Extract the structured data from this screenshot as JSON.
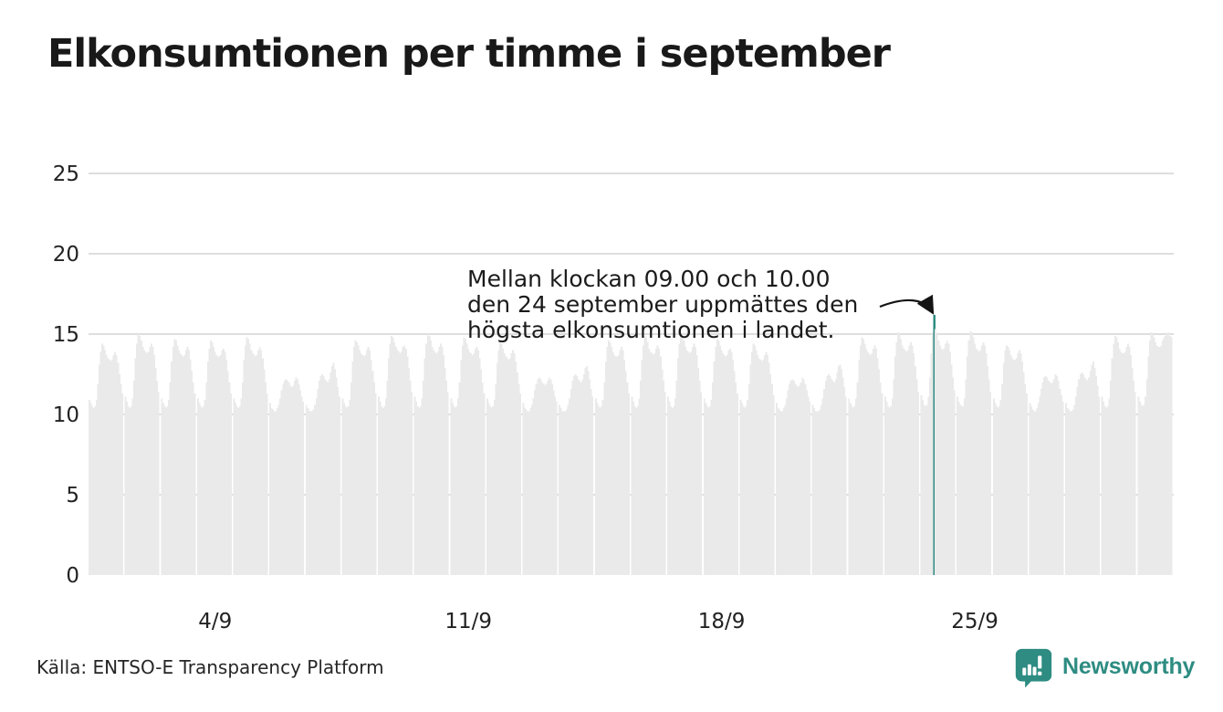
{
  "header": {
    "title": "Elkonsumtionen per timme i september"
  },
  "chart_data": {
    "type": "bar",
    "title": "Elkonsumtionen per timme i september",
    "xlabel": "",
    "ylabel": "",
    "ylim": [
      0,
      25
    ],
    "yticks": [
      0,
      5,
      10,
      15,
      20,
      25
    ],
    "xticks": [
      {
        "label": "4/9",
        "day": 4
      },
      {
        "label": "11/9",
        "day": 11
      },
      {
        "label": "18/9",
        "day": 18
      },
      {
        "label": "25/9",
        "day": 25
      }
    ],
    "grid": "horizontal",
    "legend": "none",
    "bar_color": "#eaeaea",
    "grid_color": "#dedede",
    "highlight": {
      "day": 24,
      "hour": 9,
      "value": 16.2,
      "color": "#2e8c82"
    },
    "annotation": {
      "line1": "Mellan klockan 09.00 och 10.00",
      "line2": "den 24 september uppmättes den",
      "line3": "högsta elkonsumtionen i landet."
    },
    "days": [
      [
        10.9,
        10.7,
        10.5,
        10.4,
        10.5,
        10.9,
        11.9,
        13.1,
        13.9,
        14.4,
        14.3,
        14.0,
        13.7,
        13.5,
        13.4,
        13.3,
        13.4,
        13.7,
        13.9,
        13.7,
        13.2,
        12.5,
        11.9,
        11.3
      ],
      [
        11.1,
        10.8,
        10.5,
        10.4,
        10.5,
        11.0,
        12.1,
        13.5,
        14.4,
        15.0,
        14.9,
        14.6,
        14.2,
        14.0,
        13.9,
        13.8,
        13.9,
        14.2,
        14.4,
        14.2,
        13.7,
        12.9,
        12.1,
        11.4
      ],
      [
        11.0,
        10.7,
        10.5,
        10.4,
        10.5,
        10.9,
        12.0,
        13.3,
        14.2,
        14.7,
        14.6,
        14.3,
        14.0,
        13.8,
        13.7,
        13.6,
        13.7,
        14.0,
        14.2,
        14.0,
        13.4,
        12.7,
        12.0,
        11.3
      ],
      [
        11.0,
        10.7,
        10.5,
        10.4,
        10.5,
        10.9,
        12.0,
        13.3,
        14.1,
        14.6,
        14.5,
        14.2,
        13.9,
        13.7,
        13.6,
        13.6,
        13.7,
        14.0,
        14.1,
        13.9,
        13.4,
        12.7,
        12.0,
        11.3
      ],
      [
        11.0,
        10.7,
        10.5,
        10.4,
        10.5,
        11.0,
        12.0,
        13.4,
        14.3,
        14.8,
        14.7,
        14.4,
        14.0,
        13.8,
        13.7,
        13.6,
        13.7,
        14.0,
        14.2,
        14.0,
        13.5,
        12.8,
        12.0,
        11.3
      ],
      [
        10.7,
        10.4,
        10.3,
        10.2,
        10.2,
        10.4,
        10.6,
        11.0,
        11.5,
        11.9,
        12.1,
        12.2,
        12.1,
        12.0,
        11.8,
        11.7,
        11.8,
        12.1,
        12.3,
        12.2,
        11.9,
        11.5,
        11.1,
        10.8
      ],
      [
        10.6,
        10.4,
        10.2,
        10.2,
        10.2,
        10.3,
        10.6,
        11.0,
        11.6,
        12.1,
        12.4,
        12.5,
        12.4,
        12.2,
        12.1,
        12.0,
        12.2,
        12.6,
        13.0,
        13.2,
        12.8,
        12.3,
        11.7,
        11.1
      ],
      [
        11.0,
        10.7,
        10.5,
        10.4,
        10.5,
        10.9,
        12.0,
        13.3,
        14.2,
        14.6,
        14.5,
        14.3,
        14.0,
        13.8,
        13.7,
        13.6,
        13.7,
        14.0,
        14.2,
        14.0,
        13.4,
        12.7,
        12.0,
        11.3
      ],
      [
        11.1,
        10.8,
        10.5,
        10.4,
        10.5,
        11.0,
        12.1,
        13.5,
        14.4,
        14.9,
        14.8,
        14.5,
        14.2,
        14.0,
        13.9,
        13.8,
        13.9,
        14.2,
        14.3,
        14.1,
        13.6,
        12.9,
        12.1,
        11.4
      ],
      [
        11.1,
        10.8,
        10.5,
        10.4,
        10.5,
        11.0,
        12.1,
        13.5,
        14.4,
        15.0,
        14.9,
        14.6,
        14.2,
        14.0,
        13.9,
        13.8,
        13.9,
        14.2,
        14.4,
        14.2,
        13.7,
        12.9,
        12.1,
        11.4
      ],
      [
        11.0,
        10.7,
        10.5,
        10.4,
        10.5,
        11.0,
        12.0,
        13.4,
        14.3,
        14.8,
        14.7,
        14.4,
        14.1,
        13.9,
        13.8,
        13.7,
        13.8,
        14.1,
        14.2,
        14.0,
        13.5,
        12.8,
        12.0,
        11.3
      ],
      [
        11.0,
        10.7,
        10.5,
        10.4,
        10.5,
        10.9,
        11.9,
        13.2,
        14.0,
        14.5,
        14.4,
        14.1,
        13.8,
        13.6,
        13.5,
        13.4,
        13.5,
        13.8,
        14.0,
        13.8,
        13.3,
        12.6,
        11.9,
        11.3
      ],
      [
        10.7,
        10.4,
        10.3,
        10.2,
        10.2,
        10.4,
        10.6,
        11.0,
        11.5,
        11.9,
        12.2,
        12.3,
        12.2,
        12.0,
        11.9,
        11.8,
        11.9,
        12.1,
        12.3,
        12.2,
        11.9,
        11.5,
        11.1,
        10.8
      ],
      [
        10.6,
        10.4,
        10.2,
        10.2,
        10.2,
        10.3,
        10.6,
        11.0,
        11.6,
        12.1,
        12.4,
        12.5,
        12.4,
        12.2,
        12.1,
        12.0,
        12.2,
        12.5,
        12.9,
        13.0,
        12.7,
        12.2,
        11.6,
        11.1
      ],
      [
        11.0,
        10.7,
        10.5,
        10.4,
        10.5,
        10.9,
        12.0,
        13.3,
        14.2,
        14.6,
        14.5,
        14.2,
        13.9,
        13.7,
        13.6,
        13.6,
        13.7,
        14.0,
        14.2,
        14.0,
        13.4,
        12.7,
        12.0,
        11.3
      ],
      [
        11.1,
        10.8,
        10.5,
        10.4,
        10.5,
        11.0,
        12.1,
        13.4,
        14.3,
        14.9,
        14.8,
        14.5,
        14.1,
        13.9,
        13.8,
        13.7,
        13.8,
        14.1,
        14.3,
        14.1,
        13.6,
        12.8,
        12.1,
        11.4
      ],
      [
        11.1,
        10.8,
        10.5,
        10.4,
        10.5,
        11.0,
        12.1,
        13.5,
        14.4,
        15.0,
        14.9,
        14.6,
        14.2,
        14.0,
        13.9,
        13.8,
        13.9,
        14.2,
        14.4,
        14.2,
        13.7,
        12.9,
        12.1,
        11.4
      ],
      [
        11.0,
        10.7,
        10.5,
        10.4,
        10.5,
        10.9,
        12.0,
        13.3,
        14.2,
        14.7,
        14.6,
        14.3,
        14.0,
        13.8,
        13.7,
        13.6,
        13.7,
        14.0,
        14.1,
        13.9,
        13.4,
        12.7,
        12.0,
        11.3
      ],
      [
        10.9,
        10.7,
        10.5,
        10.4,
        10.5,
        10.9,
        11.9,
        13.1,
        13.9,
        14.4,
        14.3,
        14.0,
        13.7,
        13.5,
        13.4,
        13.3,
        13.4,
        13.7,
        13.9,
        13.7,
        13.2,
        12.5,
        11.9,
        11.2
      ],
      [
        10.7,
        10.4,
        10.3,
        10.2,
        10.2,
        10.4,
        10.6,
        11.0,
        11.5,
        11.9,
        12.1,
        12.2,
        12.1,
        11.9,
        11.8,
        11.7,
        11.8,
        12.0,
        12.3,
        12.2,
        11.9,
        11.5,
        11.1,
        10.8
      ],
      [
        10.6,
        10.4,
        10.2,
        10.2,
        10.2,
        10.3,
        10.6,
        11.0,
        11.6,
        12.1,
        12.4,
        12.5,
        12.4,
        12.2,
        12.1,
        12.0,
        12.2,
        12.6,
        13.0,
        13.1,
        12.8,
        12.3,
        11.7,
        11.1
      ],
      [
        11.0,
        10.7,
        10.5,
        10.4,
        10.5,
        11.0,
        12.0,
        13.4,
        14.3,
        14.8,
        14.7,
        14.4,
        14.1,
        13.9,
        13.8,
        13.7,
        13.8,
        14.1,
        14.3,
        14.1,
        13.5,
        12.8,
        12.0,
        11.3
      ],
      [
        11.1,
        10.8,
        10.5,
        10.4,
        10.5,
        11.0,
        12.2,
        13.6,
        14.5,
        15.1,
        15.0,
        14.7,
        14.3,
        14.1,
        14.0,
        13.9,
        14.0,
        14.3,
        14.5,
        14.3,
        13.8,
        13.0,
        12.2,
        11.4
      ],
      [
        11.2,
        10.9,
        10.6,
        10.5,
        10.6,
        11.1,
        12.3,
        13.8,
        15.0,
        16.2,
        15.3,
        15.0,
        14.6,
        14.3,
        14.1,
        14.0,
        14.1,
        14.4,
        14.6,
        14.4,
        13.9,
        13.1,
        12.3,
        11.5
      ],
      [
        11.1,
        10.8,
        10.6,
        10.5,
        10.5,
        11.0,
        12.2,
        13.6,
        14.6,
        15.2,
        15.1,
        14.8,
        14.4,
        14.1,
        14.0,
        13.9,
        14.0,
        14.3,
        14.5,
        14.3,
        13.8,
        13.0,
        12.2,
        11.4
      ],
      [
        11.0,
        10.7,
        10.5,
        10.4,
        10.5,
        10.9,
        11.9,
        13.2,
        14.0,
        14.3,
        14.2,
        14.0,
        13.7,
        13.5,
        13.4,
        13.4,
        13.5,
        13.8,
        14.0,
        13.8,
        13.3,
        12.6,
        11.9,
        11.3
      ],
      [
        10.7,
        10.5,
        10.3,
        10.2,
        10.2,
        10.4,
        10.7,
        11.1,
        11.6,
        12.0,
        12.3,
        12.4,
        12.3,
        12.1,
        12.0,
        11.9,
        12.0,
        12.2,
        12.5,
        12.4,
        12.1,
        11.6,
        11.2,
        10.8
      ],
      [
        10.7,
        10.4,
        10.3,
        10.2,
        10.2,
        10.3,
        10.6,
        11.1,
        11.7,
        12.2,
        12.5,
        12.6,
        12.5,
        12.3,
        12.2,
        12.1,
        12.3,
        12.7,
        13.1,
        13.3,
        12.9,
        12.4,
        11.8,
        11.1
      ],
      [
        11.1,
        10.8,
        10.5,
        10.4,
        10.5,
        11.0,
        12.1,
        13.5,
        14.4,
        14.9,
        14.8,
        14.5,
        14.1,
        13.9,
        13.8,
        13.8,
        13.9,
        14.2,
        14.4,
        14.2,
        13.7,
        12.9,
        12.1,
        11.4
      ],
      [
        11.1,
        10.8,
        10.6,
        10.5,
        10.6,
        11.1,
        12.2,
        13.6,
        14.6,
        15.1,
        15.0,
        14.8,
        14.5,
        14.3,
        14.2,
        14.2,
        14.3,
        14.6,
        14.8,
        14.9,
        15.0,
        15.1,
        14.9,
        14.8
      ]
    ]
  },
  "footer": {
    "source": "Källa: ENTSO-E Transparency Platform",
    "logo_text": "Newsworthy",
    "logo_icon": "bar-chart-speech-bubble-icon",
    "brand_color": "#2e8c82"
  }
}
